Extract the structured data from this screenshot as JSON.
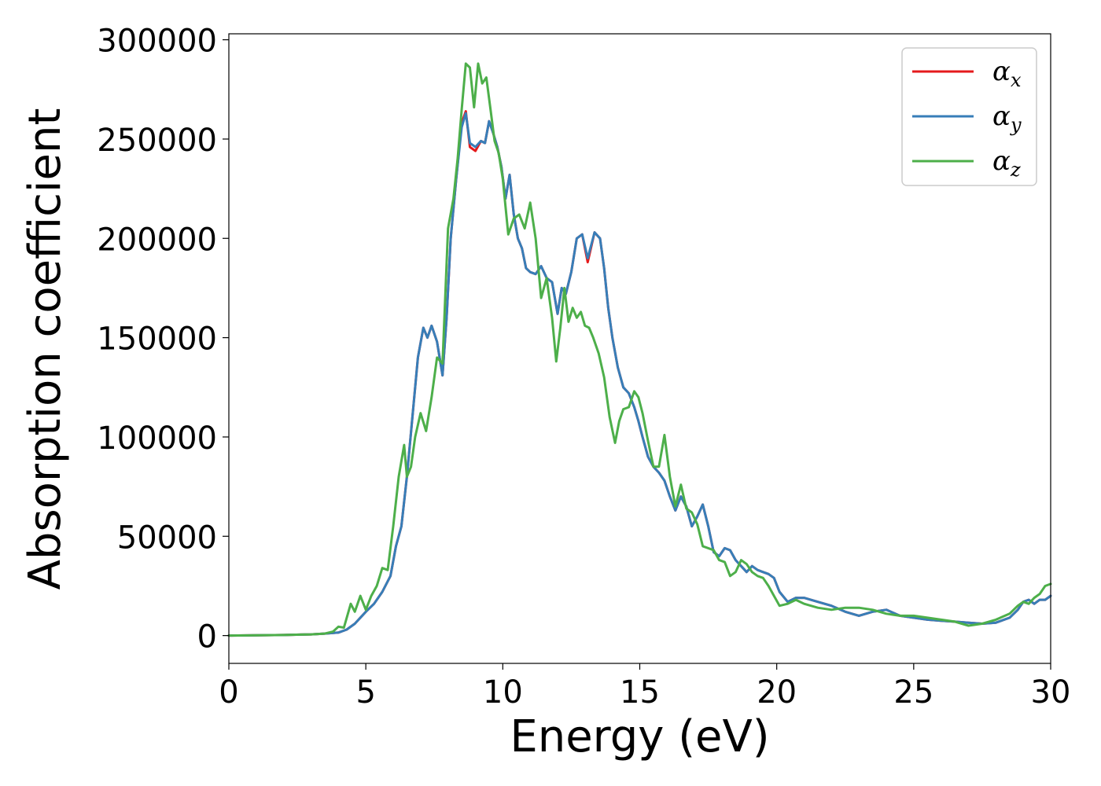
{
  "chart_data": {
    "type": "line",
    "title": "",
    "xlabel": "Energy (eV)",
    "ylabel": "Absorption coefficient",
    "xlim": [
      0,
      30
    ],
    "ylim": [
      -14000,
      303000
    ],
    "xticks": [
      0,
      5,
      10,
      15,
      20,
      25,
      30
    ],
    "yticks": [
      0,
      50000,
      100000,
      150000,
      200000,
      250000,
      300000
    ],
    "xtick_labels": [
      "0",
      "5",
      "10",
      "15",
      "20",
      "25",
      "30"
    ],
    "ytick_labels": [
      "0",
      "50000",
      "100000",
      "150000",
      "200000",
      "250000",
      "300000"
    ],
    "grid": false,
    "legend_position": "top-right",
    "series": [
      {
        "name": "α_x",
        "legend_base": "α",
        "legend_sub": "x",
        "color": "#e41a1c",
        "x": [
          0,
          2,
          3,
          3.5,
          4,
          4.3,
          4.6,
          5.0,
          5.3,
          5.6,
          5.9,
          6.1,
          6.3,
          6.5,
          6.7,
          6.9,
          7.1,
          7.25,
          7.4,
          7.6,
          7.8,
          7.95,
          8.1,
          8.3,
          8.5,
          8.65,
          8.8,
          9.0,
          9.2,
          9.35,
          9.5,
          9.65,
          9.8,
          9.95,
          10.1,
          10.25,
          10.4,
          10.55,
          10.7,
          10.85,
          11.0,
          11.2,
          11.4,
          11.6,
          11.8,
          12.0,
          12.15,
          12.3,
          12.5,
          12.7,
          12.9,
          13.1,
          13.35,
          13.55,
          13.7,
          13.85,
          14.0,
          14.2,
          14.4,
          14.6,
          14.8,
          14.95,
          15.1,
          15.3,
          15.5,
          15.7,
          15.9,
          16.1,
          16.3,
          16.5,
          16.7,
          16.9,
          17.1,
          17.3,
          17.5,
          17.7,
          17.9,
          18.1,
          18.3,
          18.5,
          18.7,
          18.9,
          19.1,
          19.3,
          19.5,
          19.7,
          19.9,
          20.1,
          20.4,
          20.7,
          21.0,
          21.5,
          22.0,
          22.5,
          23.0,
          23.5,
          24.0,
          24.5,
          25.0,
          25.5,
          26.0,
          26.5,
          27.0,
          27.5,
          28.0,
          28.5,
          28.8,
          29.0,
          29.2,
          29.4,
          29.6,
          29.8,
          30.0
        ],
        "y": [
          0,
          300,
          600,
          1000,
          1500,
          3000,
          6000,
          12000,
          16000,
          22000,
          30000,
          45000,
          55000,
          80000,
          110000,
          140000,
          155000,
          150000,
          156000,
          148000,
          131000,
          160000,
          200000,
          230000,
          258000,
          264000,
          246000,
          244000,
          249000,
          248000,
          259000,
          253000,
          246000,
          236000,
          220000,
          232000,
          212000,
          200000,
          195000,
          185000,
          183000,
          182000,
          186000,
          180000,
          178000,
          162000,
          175000,
          172000,
          183000,
          200000,
          202000,
          188000,
          203000,
          200000,
          185000,
          165000,
          150000,
          135000,
          125000,
          122000,
          115000,
          108000,
          100000,
          90000,
          85000,
          82000,
          78000,
          70000,
          63000,
          70000,
          65000,
          55000,
          60000,
          66000,
          55000,
          42000,
          40000,
          44000,
          43000,
          38000,
          35000,
          32000,
          35000,
          33000,
          32000,
          31000,
          29000,
          22000,
          17000,
          19000,
          19000,
          17000,
          15000,
          12000,
          10000,
          12000,
          13000,
          10000,
          9000,
          8000,
          7500,
          7000,
          6500,
          6000,
          6500,
          9000,
          13000,
          17000,
          18000,
          16000,
          18000,
          18000,
          20000
        ]
      },
      {
        "name": "α_y",
        "legend_base": "α",
        "legend_sub": "y",
        "color": "#377eb8",
        "x": [
          0,
          2,
          3,
          3.5,
          4,
          4.3,
          4.6,
          5.0,
          5.3,
          5.6,
          5.9,
          6.1,
          6.3,
          6.5,
          6.7,
          6.9,
          7.1,
          7.25,
          7.4,
          7.6,
          7.8,
          7.95,
          8.1,
          8.3,
          8.5,
          8.65,
          8.8,
          9.0,
          9.2,
          9.35,
          9.5,
          9.65,
          9.8,
          9.95,
          10.1,
          10.25,
          10.4,
          10.55,
          10.7,
          10.85,
          11.0,
          11.2,
          11.4,
          11.6,
          11.8,
          12.0,
          12.15,
          12.3,
          12.5,
          12.7,
          12.9,
          13.1,
          13.35,
          13.55,
          13.7,
          13.85,
          14.0,
          14.2,
          14.4,
          14.6,
          14.8,
          14.95,
          15.1,
          15.3,
          15.5,
          15.7,
          15.9,
          16.1,
          16.3,
          16.5,
          16.7,
          16.9,
          17.1,
          17.3,
          17.5,
          17.7,
          17.9,
          18.1,
          18.3,
          18.5,
          18.7,
          18.9,
          19.1,
          19.3,
          19.5,
          19.7,
          19.9,
          20.1,
          20.4,
          20.7,
          21.0,
          21.5,
          22.0,
          22.5,
          23.0,
          23.5,
          24.0,
          24.5,
          25.0,
          25.5,
          26.0,
          26.5,
          27.0,
          27.5,
          28.0,
          28.5,
          28.8,
          29.0,
          29.2,
          29.4,
          29.6,
          29.8,
          30.0
        ],
        "y": [
          0,
          300,
          600,
          1000,
          1500,
          3000,
          6000,
          12000,
          16000,
          22000,
          30000,
          45000,
          55000,
          80000,
          110000,
          140000,
          155000,
          150000,
          156000,
          148000,
          131000,
          160000,
          200000,
          230000,
          256000,
          263000,
          248000,
          246000,
          249000,
          248000,
          259000,
          253000,
          246000,
          236000,
          220000,
          232000,
          212000,
          200000,
          195000,
          185000,
          183000,
          182000,
          186000,
          180000,
          178000,
          162000,
          175000,
          172000,
          183000,
          200000,
          202000,
          190000,
          203000,
          200000,
          185000,
          165000,
          150000,
          135000,
          125000,
          122000,
          115000,
          108000,
          100000,
          90000,
          85000,
          82000,
          78000,
          70000,
          63000,
          70000,
          65000,
          55000,
          60000,
          66000,
          55000,
          42000,
          40000,
          44000,
          43000,
          38000,
          35000,
          32000,
          35000,
          33000,
          32000,
          31000,
          29000,
          22000,
          17000,
          19000,
          19000,
          17000,
          15000,
          12000,
          10000,
          12000,
          13000,
          10000,
          9000,
          8000,
          7500,
          7000,
          6500,
          6000,
          6500,
          9000,
          13000,
          17000,
          18000,
          16000,
          18000,
          18000,
          20000
        ]
      },
      {
        "name": "α_z",
        "legend_base": "α",
        "legend_sub": "z",
        "color": "#4daf4a",
        "x": [
          0,
          2,
          3,
          3.5,
          3.8,
          4.0,
          4.2,
          4.45,
          4.6,
          4.8,
          5.0,
          5.2,
          5.4,
          5.6,
          5.8,
          6.0,
          6.2,
          6.4,
          6.5,
          6.65,
          6.8,
          7.0,
          7.2,
          7.4,
          7.6,
          7.8,
          8.0,
          8.2,
          8.35,
          8.5,
          8.65,
          8.8,
          8.95,
          9.1,
          9.25,
          9.4,
          9.55,
          9.7,
          9.85,
          10.0,
          10.2,
          10.4,
          10.6,
          10.8,
          11.0,
          11.2,
          11.4,
          11.6,
          11.8,
          11.95,
          12.1,
          12.25,
          12.4,
          12.55,
          12.7,
          12.85,
          13.0,
          13.15,
          13.3,
          13.5,
          13.7,
          13.9,
          14.1,
          14.25,
          14.4,
          14.6,
          14.8,
          14.95,
          15.1,
          15.3,
          15.5,
          15.7,
          15.9,
          16.1,
          16.3,
          16.5,
          16.7,
          16.9,
          17.1,
          17.3,
          17.5,
          17.7,
          17.9,
          18.1,
          18.3,
          18.5,
          18.7,
          18.9,
          19.1,
          19.3,
          19.5,
          19.7,
          19.9,
          20.1,
          20.4,
          20.7,
          21.0,
          21.5,
          22.0,
          22.5,
          23.0,
          23.5,
          24.0,
          24.5,
          25.0,
          25.5,
          26.0,
          26.5,
          27.0,
          27.5,
          28.0,
          28.5,
          28.8,
          29.0,
          29.2,
          29.4,
          29.6,
          29.8,
          30.0
        ],
        "y": [
          0,
          300,
          600,
          1000,
          2000,
          4500,
          4000,
          16000,
          12000,
          20000,
          13000,
          20000,
          25000,
          34000,
          33000,
          55000,
          80000,
          96000,
          80000,
          85000,
          100000,
          112000,
          103000,
          120000,
          140000,
          137000,
          205000,
          220000,
          240000,
          265000,
          288000,
          286000,
          266000,
          288000,
          278000,
          281000,
          265000,
          249000,
          243000,
          230000,
          202000,
          210000,
          212000,
          205000,
          218000,
          200000,
          170000,
          180000,
          160000,
          138000,
          155000,
          175000,
          158000,
          165000,
          160000,
          163000,
          156000,
          155000,
          150000,
          142000,
          130000,
          110000,
          97000,
          108000,
          114000,
          115000,
          123000,
          120000,
          112000,
          98000,
          85000,
          85000,
          101000,
          80000,
          65000,
          76000,
          64000,
          62000,
          56000,
          45000,
          44000,
          43000,
          38000,
          37000,
          30000,
          32000,
          38000,
          36000,
          32000,
          30000,
          29000,
          25000,
          20000,
          15000,
          16000,
          18000,
          16000,
          14000,
          13000,
          14000,
          14000,
          13000,
          11000,
          10000,
          10000,
          9000,
          8000,
          7000,
          5000,
          6000,
          8000,
          11000,
          15000,
          17000,
          16000,
          19000,
          21000,
          25000,
          26000
        ]
      }
    ]
  }
}
